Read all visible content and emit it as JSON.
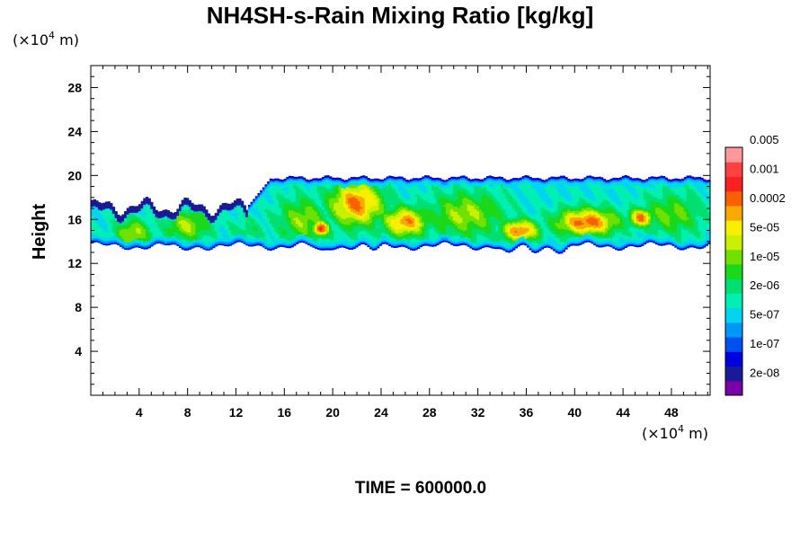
{
  "chart_data": {
    "type": "heatmap",
    "title": "NH4SH-s-Rain Mixing Ratio [kg/kg]",
    "ylabel": "Height",
    "x_unit": {
      "prefix": "(×10",
      "exp": "4",
      "suffix": " m)"
    },
    "y_unit": {
      "prefix": "(×10",
      "exp": "4",
      "suffix": " m)"
    },
    "time_label": "TIME = 600000.0",
    "xlim": [
      0,
      51.2
    ],
    "ylim": [
      0,
      30
    ],
    "x_ticks": [
      4,
      8,
      12,
      16,
      20,
      24,
      28,
      32,
      36,
      40,
      44,
      48
    ],
    "y_ticks": [
      4,
      8,
      12,
      16,
      20,
      24,
      28
    ],
    "colorbar": {
      "colors": [
        "#7a00a8",
        "#1a1a96",
        "#0000e0",
        "#0050f0",
        "#0098f8",
        "#00d4f0",
        "#00f0b4",
        "#00e070",
        "#1ad81a",
        "#70e000",
        "#c8f000",
        "#f8f000",
        "#f8a800",
        "#f86000",
        "#f82020",
        "#ff4040",
        "#ff9898"
      ],
      "labels": [
        "2e-08",
        "1e-07",
        "5e-07",
        "2e-06",
        "1e-05",
        "5e-05",
        "0.0002",
        "0.001",
        "0.005"
      ]
    },
    "field_description": {
      "cloud_base_km_x1e4": 13.5,
      "cloud_top_km_x1e4": 20,
      "core_max_value": "0.0002 to 0.001 band near heights 14-17"
    }
  }
}
